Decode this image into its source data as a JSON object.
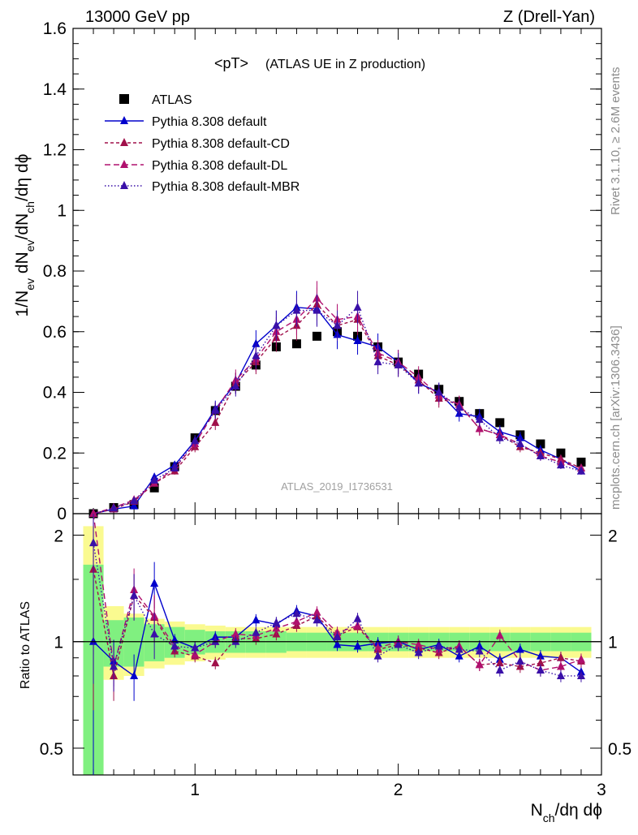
{
  "header": {
    "left": "13000 GeV pp",
    "right": "Z (Drell-Yan)"
  },
  "plot_title_main": "<pT>",
  "plot_title_sub": "(ATLAS UE in Z production)",
  "side_label_top": "Rivet 3.1.10, ≥ 2.6M events",
  "side_label_bottom": "mcplots.cern.ch [arXiv:1306.3436]",
  "analysis_label": "ATLAS_2019_I1736531",
  "ratio_axis_label": "Ratio to ATLAS",
  "colors": {
    "data": "#000000",
    "default": "#0000cc",
    "cd": "#a0104a",
    "dl": "#b0106e",
    "mbr": "#3a10a8",
    "band_inner": "#80f080",
    "band_outer": "#fafa90"
  },
  "chart_data": [
    {
      "type": "scatter",
      "panel": "main",
      "xlabel": "N_ch/dη dϕ",
      "ylabel": "1/N_ev dN_ev/dN_ch/dη dϕ",
      "xlim": [
        0.4,
        3.0
      ],
      "ylim": [
        0.0,
        1.6
      ],
      "yticks": [
        "0",
        "0.2",
        "0.4",
        "0.6",
        "0.8",
        "1",
        "1.2",
        "1.4",
        "1.6"
      ],
      "legend_position": "top-left",
      "legend": [
        "ATLAS",
        "Pythia 8.308 default",
        "Pythia 8.308 default-CD",
        "Pythia 8.308 default-DL",
        "Pythia 8.308 default-MBR"
      ],
      "x": [
        0.5,
        0.6,
        0.7,
        0.8,
        0.9,
        1.0,
        1.1,
        1.2,
        1.3,
        1.4,
        1.5,
        1.6,
        1.7,
        1.8,
        1.9,
        2.0,
        2.1,
        2.2,
        2.3,
        2.4,
        2.5,
        2.6,
        2.7,
        2.8,
        2.9
      ],
      "series": [
        {
          "name": "ATLAS",
          "values": [
            0.0,
            0.02,
            0.03,
            0.085,
            0.155,
            0.25,
            0.34,
            0.42,
            0.49,
            0.55,
            0.56,
            0.585,
            0.6,
            0.585,
            0.55,
            0.5,
            0.46,
            0.41,
            0.37,
            0.33,
            0.3,
            0.26,
            0.23,
            0.2,
            0.17
          ]
        },
        {
          "name": "Pythia 8.308 default",
          "values": [
            0.0,
            0.015,
            0.025,
            0.12,
            0.16,
            0.24,
            0.345,
            0.43,
            0.56,
            0.62,
            0.68,
            0.675,
            0.59,
            0.57,
            0.55,
            0.5,
            0.43,
            0.4,
            0.33,
            0.32,
            0.27,
            0.25,
            0.21,
            0.18,
            0.14
          ]
        },
        {
          "name": "Pythia 8.308 default-CD",
          "values": [
            0.0,
            0.015,
            0.04,
            0.1,
            0.14,
            0.22,
            0.3,
            0.43,
            0.5,
            0.58,
            0.62,
            0.69,
            0.62,
            0.64,
            0.52,
            0.49,
            0.44,
            0.38,
            0.36,
            0.28,
            0.26,
            0.22,
            0.2,
            0.18,
            0.15
          ]
        },
        {
          "name": "Pythia 8.308 default-DL",
          "values": [
            0.0,
            0.02,
            0.045,
            0.1,
            0.15,
            0.23,
            0.34,
            0.44,
            0.51,
            0.6,
            0.64,
            0.71,
            0.64,
            0.65,
            0.53,
            0.5,
            0.45,
            0.39,
            0.36,
            0.28,
            0.26,
            0.23,
            0.19,
            0.17,
            0.15
          ]
        },
        {
          "name": "Pythia 8.308 default-MBR",
          "values": [
            0.0,
            0.018,
            0.042,
            0.11,
            0.15,
            0.24,
            0.34,
            0.42,
            0.52,
            0.62,
            0.67,
            0.67,
            0.62,
            0.68,
            0.5,
            0.49,
            0.43,
            0.4,
            0.35,
            0.31,
            0.25,
            0.23,
            0.19,
            0.16,
            0.14
          ]
        }
      ]
    },
    {
      "type": "scatter",
      "panel": "ratio",
      "xlabel": "N_ch/dη dϕ",
      "ylabel": "Ratio to ATLAS",
      "xlim": [
        0.4,
        3.0
      ],
      "ylim": [
        0.42,
        2.3
      ],
      "log_y": true,
      "yticks": [
        "0.5",
        "1",
        "2"
      ],
      "xticks": [
        "1",
        "2",
        "3"
      ],
      "x": [
        0.5,
        0.6,
        0.7,
        0.8,
        0.9,
        1.0,
        1.1,
        1.2,
        1.3,
        1.4,
        1.5,
        1.6,
        1.7,
        1.8,
        1.9,
        2.0,
        2.1,
        2.2,
        2.3,
        2.4,
        2.5,
        2.6,
        2.7,
        2.8,
        2.9
      ],
      "band_inner": [
        [
          0.35,
          1.65
        ],
        [
          0.85,
          1.15
        ],
        [
          0.85,
          1.17
        ],
        [
          0.88,
          1.12
        ],
        [
          0.9,
          1.1
        ],
        [
          0.92,
          1.08
        ],
        [
          0.93,
          1.07
        ],
        [
          0.93,
          1.07
        ],
        [
          0.93,
          1.07
        ],
        [
          0.93,
          1.07
        ],
        [
          0.94,
          1.06
        ],
        [
          0.94,
          1.06
        ],
        [
          0.94,
          1.06
        ],
        [
          0.94,
          1.06
        ],
        [
          0.94,
          1.06
        ],
        [
          0.94,
          1.06
        ],
        [
          0.94,
          1.06
        ],
        [
          0.94,
          1.06
        ],
        [
          0.94,
          1.06
        ],
        [
          0.94,
          1.06
        ],
        [
          0.94,
          1.06
        ],
        [
          0.94,
          1.06
        ],
        [
          0.94,
          1.06
        ],
        [
          0.94,
          1.06
        ],
        [
          0.94,
          1.06
        ]
      ],
      "band_outer": [
        [
          0.35,
          2.12
        ],
        [
          0.78,
          1.26
        ],
        [
          0.8,
          1.2
        ],
        [
          0.84,
          1.16
        ],
        [
          0.86,
          1.14
        ],
        [
          0.88,
          1.12
        ],
        [
          0.89,
          1.11
        ],
        [
          0.9,
          1.1
        ],
        [
          0.9,
          1.1
        ],
        [
          0.9,
          1.1
        ],
        [
          0.9,
          1.1
        ],
        [
          0.9,
          1.1
        ],
        [
          0.9,
          1.1
        ],
        [
          0.9,
          1.1
        ],
        [
          0.9,
          1.1
        ],
        [
          0.9,
          1.1
        ],
        [
          0.9,
          1.1
        ],
        [
          0.9,
          1.1
        ],
        [
          0.9,
          1.1
        ],
        [
          0.9,
          1.1
        ],
        [
          0.9,
          1.1
        ],
        [
          0.9,
          1.1
        ],
        [
          0.9,
          1.1
        ],
        [
          0.9,
          1.1
        ],
        [
          0.9,
          1.1
        ]
      ],
      "series": [
        {
          "name": "Pythia 8.308 default",
          "values": [
            1.0,
            0.88,
            0.8,
            1.46,
            1.01,
            0.96,
            1.03,
            1.03,
            1.15,
            1.12,
            1.22,
            1.18,
            0.98,
            0.97,
            0.99,
            1.0,
            0.95,
            0.98,
            0.91,
            0.97,
            0.89,
            0.95,
            0.91,
            0.9,
            0.82
          ]
        },
        {
          "name": "Pythia 8.308 default-CD",
          "values": [
            1.6,
            0.8,
            1.35,
            1.17,
            0.94,
            0.91,
            0.87,
            1.02,
            1.02,
            1.05,
            1.11,
            1.18,
            1.04,
            1.1,
            0.95,
            0.98,
            0.96,
            0.93,
            0.97,
            0.86,
            0.87,
            0.85,
            0.87,
            0.9,
            0.88
          ]
        },
        {
          "name": "Pythia 8.308 default-DL",
          "values": [
            2.3,
            0.85,
            1.4,
            1.18,
            0.97,
            0.92,
            1.0,
            1.05,
            1.04,
            1.09,
            1.14,
            1.21,
            1.06,
            1.11,
            0.96,
            1.0,
            0.98,
            0.95,
            0.97,
            0.86,
            1.04,
            0.88,
            0.83,
            0.85,
            0.89
          ]
        },
        {
          "name": "Pythia 8.308 default-MBR",
          "values": [
            1.9,
            0.85,
            1.35,
            1.05,
            0.97,
            0.96,
            1.0,
            1.0,
            1.06,
            1.13,
            1.2,
            1.15,
            1.03,
            1.16,
            0.91,
            0.98,
            0.93,
            0.97,
            0.95,
            0.94,
            0.83,
            0.88,
            0.83,
            0.8,
            0.8
          ]
        }
      ]
    }
  ]
}
